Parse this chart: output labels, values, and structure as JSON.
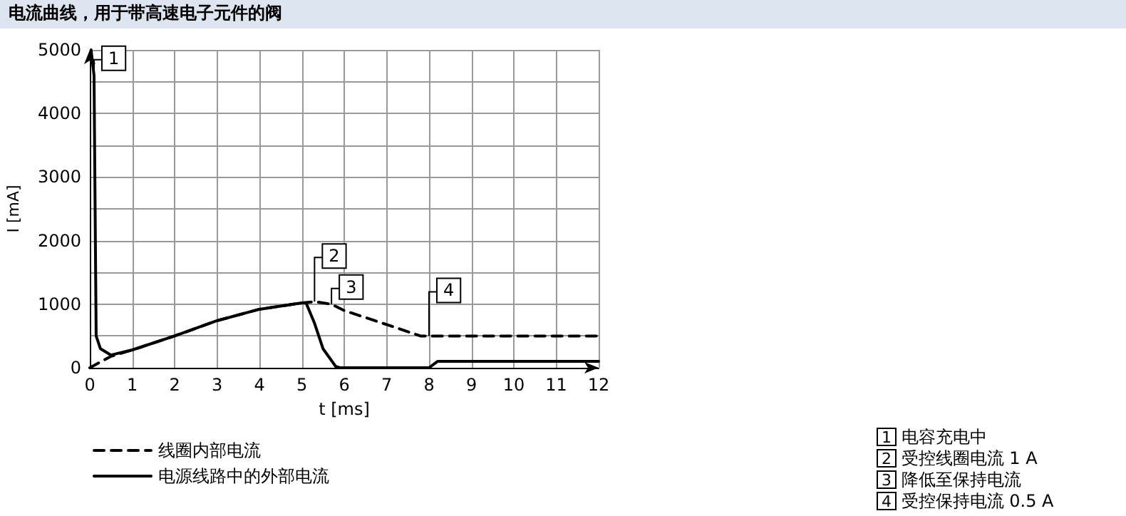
{
  "chart_data": {
    "type": "line",
    "title": "电流曲线，用于带高速电子元件的阀",
    "xlabel": "t [ms]",
    "ylabel": "I [mA]",
    "xlim": [
      0,
      12
    ],
    "xticks": [
      0,
      1,
      2,
      3,
      4,
      5,
      6,
      7,
      8,
      9,
      10,
      11,
      12
    ],
    "ylim": [
      0,
      5000
    ],
    "yticks": [
      0,
      {
        "value": 500,
        "label": null
      },
      1000,
      {
        "value": 1500,
        "label": null
      },
      2000,
      {
        "value": 2500,
        "label": null
      },
      3000,
      {
        "value": 3500,
        "label": null
      },
      4000,
      {
        "value": 4500,
        "label": null
      },
      5000
    ],
    "grid": true,
    "legend": "bottom left",
    "marker": "none",
    "series": [
      {
        "name": "线圈内部电流",
        "color": "#000000",
        "line_style": "dashed",
        "x": [
          0,
          0.5,
          1,
          2,
          3,
          4,
          5,
          5.3,
          5.7,
          6,
          7,
          7.8,
          8,
          12
        ],
        "values": [
          0,
          180,
          280,
          500,
          740,
          920,
          1020,
          1040,
          1000,
          900,
          680,
          500,
          500,
          500
        ]
      },
      {
        "name": "电源线路中的外部电流",
        "color": "#000000",
        "line_style": "solid",
        "x": [
          0.03,
          0.1,
          0.15,
          0.25,
          0.5,
          1,
          2,
          3,
          4,
          5,
          5.1,
          5.3,
          5.5,
          5.8,
          5.9,
          8,
          8.2,
          12
        ],
        "values": [
          5000,
          4600,
          500,
          300,
          200,
          280,
          500,
          740,
          920,
          1020,
          1020,
          700,
          300,
          20,
          0,
          0,
          100,
          100
        ]
      }
    ],
    "annotations": [
      {
        "text": "1",
        "x": 0.1,
        "y": 4600
      },
      {
        "text": "2",
        "x": 5.3,
        "y": 1040
      },
      {
        "text": "3",
        "x": 5.7,
        "y": 1000
      },
      {
        "text": "4",
        "x": 8,
        "y": 500
      },
      "1 电容充电中",
      "2 受控线圈电流 1 A",
      "3 降低至保持电流",
      "4 受控保持电流 0.5 A"
    ]
  }
}
